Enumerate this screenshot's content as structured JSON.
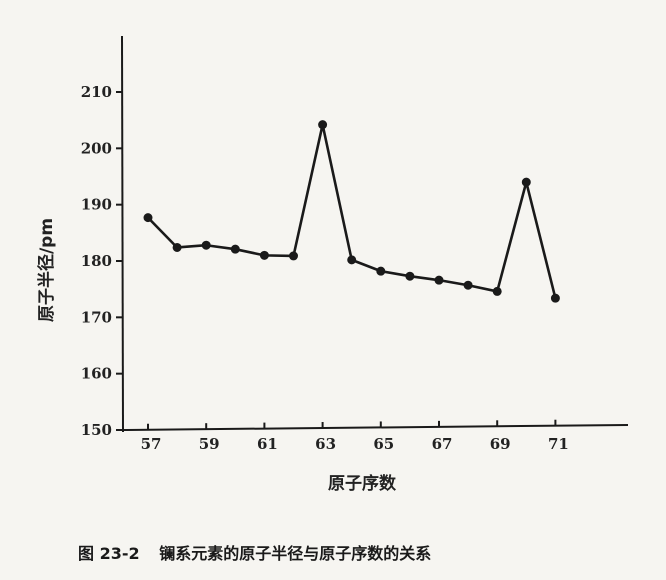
{
  "chart_data": {
    "type": "line",
    "ylabel": "原子半径/pm",
    "xlabel": "原子序数",
    "caption_number": "图 23-2",
    "caption_text": "镧系元素的原子半径与原子序数的关系",
    "ylim": [
      150,
      220
    ],
    "xlim": [
      56.5,
      73
    ],
    "yticks": [
      150,
      160,
      170,
      180,
      190,
      200,
      210
    ],
    "xticks": [
      57,
      59,
      61,
      63,
      65,
      67,
      69,
      71
    ],
    "grid": false,
    "series": [
      {
        "x": [
          57,
          58,
          59,
          60,
          61,
          62,
          63,
          64,
          65,
          66,
          67,
          68,
          69,
          70,
          71
        ],
        "values": [
          187.7,
          182.4,
          182.8,
          182.1,
          181.0,
          180.9,
          204.2,
          180.2,
          178.2,
          177.3,
          176.6,
          175.7,
          174.6,
          194.0,
          173.4
        ]
      }
    ]
  }
}
